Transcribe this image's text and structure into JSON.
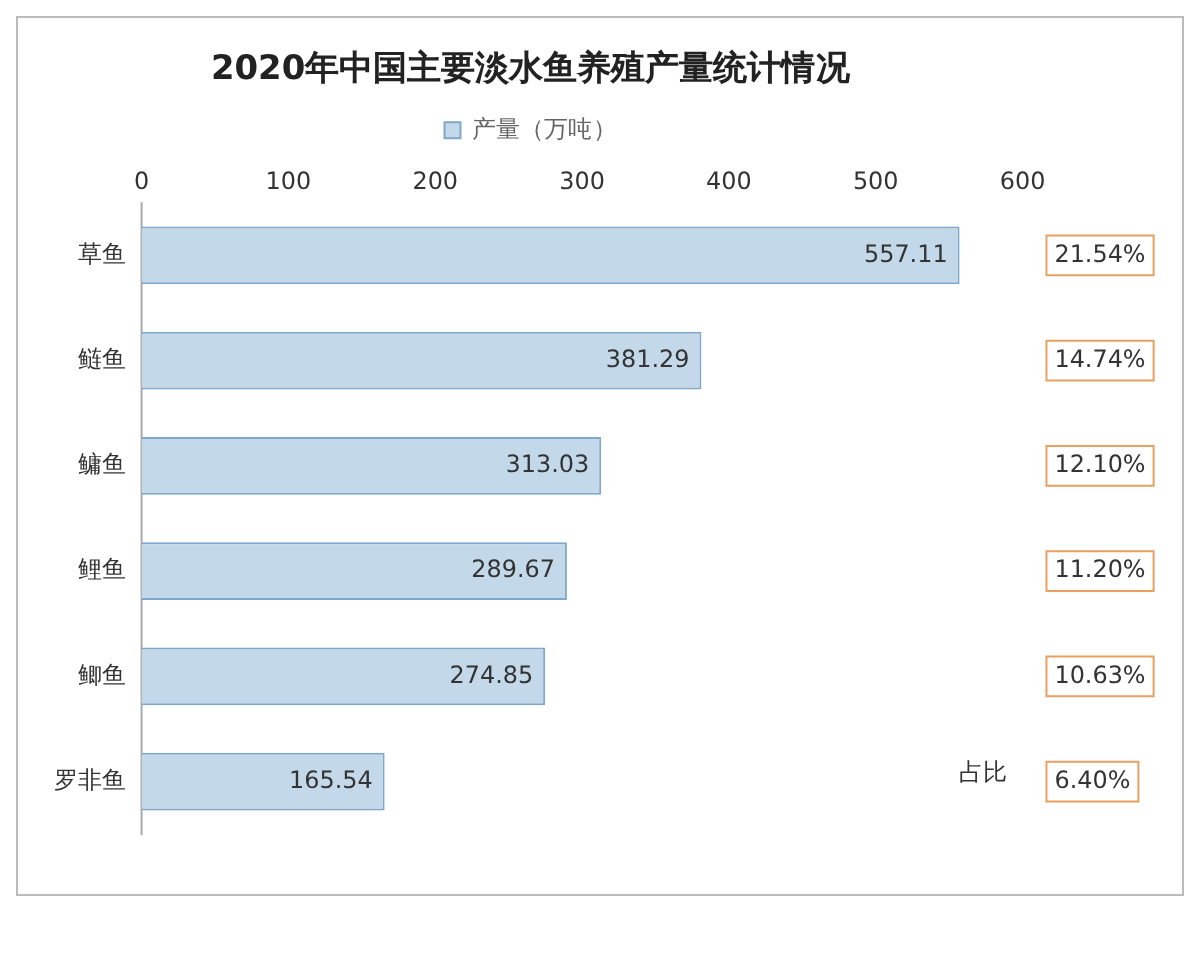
{
  "chart_data": {
    "type": "bar",
    "orientation": "horizontal",
    "title": "2020年中国主要淡水鱼养殖产量统计情况",
    "categories": [
      "草鱼",
      "鲢鱼",
      "鳙鱼",
      "鲤鱼",
      "鲫鱼",
      "罗非鱼"
    ],
    "series": [
      {
        "name": "产量（万吨）",
        "color": "#c3d9ea",
        "values": [
          557.11,
          381.29,
          313.03,
          289.67,
          274.85,
          165.54
        ]
      }
    ],
    "xlim": [
      0,
      600
    ],
    "xticks": [
      0,
      100,
      200,
      300,
      400,
      500,
      600
    ],
    "data_labels": true,
    "legend": "top",
    "grid": false,
    "annotations": [
      "21.54%",
      "14.74%",
      "12.10%",
      "11.20%",
      "10.63%",
      "6.40%",
      "占比"
    ]
  }
}
